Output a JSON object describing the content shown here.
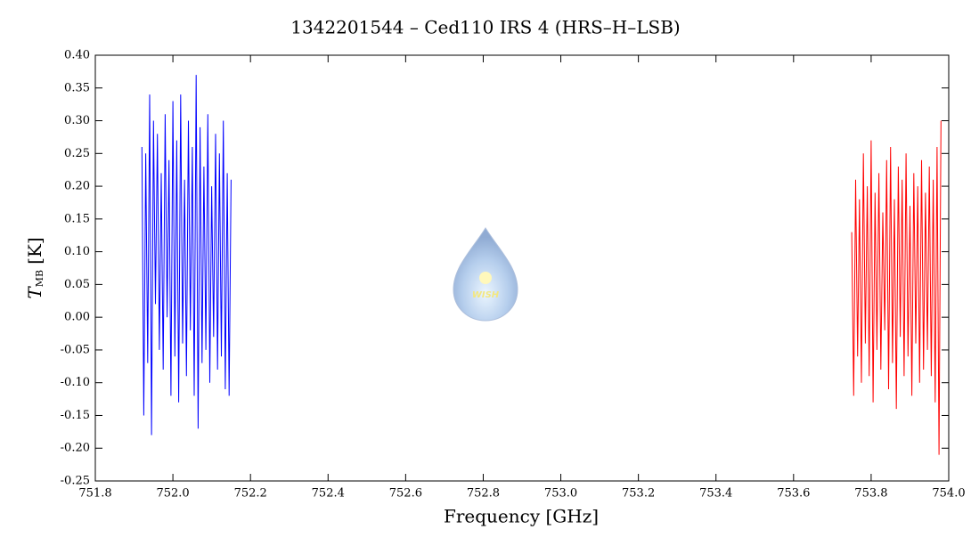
{
  "chart_data": {
    "type": "line",
    "title": "1342201544 – Ced110 IRS 4 (HRS–H–LSB)",
    "x_label": "Frequency [GHz]",
    "y_label": "T",
    "y_label_sub": "MB",
    "y_label_unit": "[K]",
    "logo_text": "WISH",
    "xlim": [
      751.8,
      754.0
    ],
    "ylim": [
      -0.25,
      0.4
    ],
    "xticks": [
      751.8,
      {
        "value": 752,
        "label": "752.0"
      },
      752.2,
      752.4,
      752.6,
      752.8,
      {
        "value": 753,
        "label": "753.0"
      },
      753.2,
      753.4,
      753.6,
      753.8,
      {
        "value": 754,
        "label": "754.0"
      }
    ],
    "yticks": [
      {
        "value": -0.2,
        "label": "-0.20"
      },
      -0.15,
      {
        "value": -0.1,
        "label": "-0.10"
      },
      -0.05,
      {
        "value": 0,
        "label": "0.00"
      },
      0.05,
      {
        "value": 0.1,
        "label": "0.10"
      },
      0.15,
      {
        "value": 0.2,
        "label": "0.20"
      },
      0.25,
      {
        "value": 0.3,
        "label": "0.30"
      },
      0.35,
      {
        "value": 0.4,
        "label": "0.40"
      },
      -0.25
    ],
    "series": [
      {
        "color": "#0000ff",
        "x": [
          751.92,
          751.925,
          751.93,
          751.935,
          751.94,
          751.945,
          751.95,
          751.955,
          751.96,
          751.965,
          751.97,
          751.975,
          751.98,
          751.985,
          751.99,
          751.995,
          752.0,
          752.005,
          752.01,
          752.015,
          752.02,
          752.025,
          752.03,
          752.035,
          752.04,
          752.045,
          752.05,
          752.055,
          752.06,
          752.065,
          752.07,
          752.075,
          752.08,
          752.085,
          752.09,
          752.095,
          752.1,
          752.105,
          752.11,
          752.115,
          752.12,
          752.125,
          752.13,
          752.135,
          752.14,
          752.145,
          752.15
        ],
        "values": [
          0.26,
          -0.15,
          0.25,
          -0.07,
          0.34,
          -0.18,
          0.3,
          0.02,
          0.28,
          -0.05,
          0.22,
          -0.08,
          0.31,
          0.0,
          0.24,
          -0.12,
          0.33,
          -0.06,
          0.27,
          -0.13,
          0.34,
          -0.04,
          0.21,
          -0.09,
          0.3,
          -0.02,
          0.26,
          -0.12,
          0.37,
          -0.17,
          0.29,
          -0.07,
          0.23,
          -0.05,
          0.31,
          -0.1,
          0.2,
          -0.03,
          0.28,
          -0.08,
          0.25,
          -0.06,
          0.3,
          -0.11,
          0.22,
          -0.12,
          0.21
        ]
      },
      {
        "color": "#ff0000",
        "x": [
          753.75,
          753.755,
          753.76,
          753.765,
          753.77,
          753.775,
          753.78,
          753.785,
          753.79,
          753.795,
          753.8,
          753.805,
          753.81,
          753.815,
          753.82,
          753.825,
          753.83,
          753.835,
          753.84,
          753.845,
          753.85,
          753.855,
          753.86,
          753.865,
          753.87,
          753.875,
          753.88,
          753.885,
          753.89,
          753.895,
          753.9,
          753.905,
          753.91,
          753.915,
          753.92,
          753.925,
          753.93,
          753.935,
          753.94,
          753.945,
          753.95,
          753.955,
          753.96,
          753.965,
          753.97,
          753.975,
          753.98
        ],
        "values": [
          0.13,
          -0.12,
          0.21,
          -0.06,
          0.18,
          -0.1,
          0.25,
          -0.04,
          0.2,
          -0.09,
          0.27,
          -0.13,
          0.19,
          -0.05,
          0.22,
          -0.08,
          0.16,
          -0.02,
          0.24,
          -0.11,
          0.26,
          -0.07,
          0.18,
          -0.14,
          0.23,
          -0.03,
          0.21,
          -0.09,
          0.25,
          -0.06,
          0.17,
          -0.12,
          0.22,
          -0.04,
          0.2,
          -0.1,
          0.24,
          -0.08,
          0.19,
          -0.05,
          0.23,
          -0.09,
          0.21,
          -0.13,
          0.26,
          -0.21,
          0.3
        ]
      }
    ]
  }
}
